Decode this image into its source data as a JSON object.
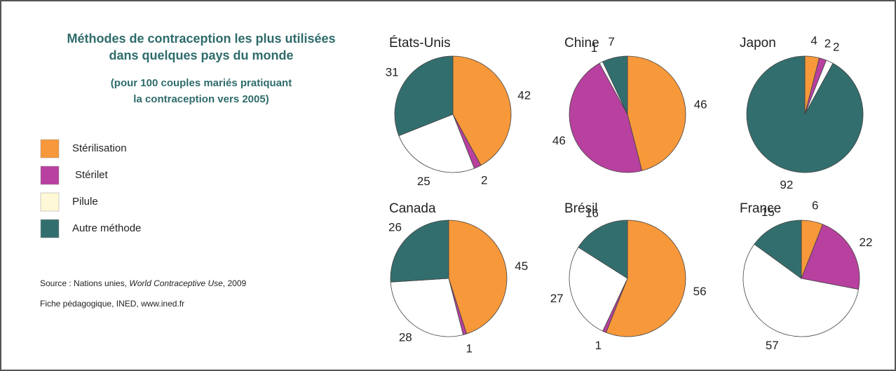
{
  "title": [
    "Méthodes de contraception  les plus utilisées",
    "dans quelques pays du monde"
  ],
  "subtitle": [
    "(pour 100 couples mariés pratiquant",
    "la contraception vers 2005)"
  ],
  "source": {
    "prefix": "Source : Nations unies, ",
    "work": "World Contraceptive Use",
    "suffix": ", 2009"
  },
  "credit": "Fiche pédagogique, INED, www.ined.fr",
  "chart_data": [
    {
      "type": "pie",
      "title": "États-Unis",
      "categories": [
        "Stérilisation",
        "Stérilet",
        "Pilule",
        "Autre méthode"
      ],
      "values": [
        42,
        2,
        25,
        31
      ],
      "colors": [
        "#f7983a",
        "#b8409f",
        "#ffffff",
        "#336e6e"
      ]
    },
    {
      "type": "pie",
      "title": "Chine",
      "categories": [
        "Stérilisation",
        "Stérilet",
        "Pilule",
        "Autre méthode"
      ],
      "values": [
        46,
        46,
        1,
        7
      ],
      "colors": [
        "#f7983a",
        "#b8409f",
        "#ffffff",
        "#336e6e"
      ]
    },
    {
      "type": "pie",
      "title": "Japon",
      "categories": [
        "Stérilisation",
        "Stérilet",
        "Pilule",
        "Autre méthode"
      ],
      "values": [
        4,
        2,
        2,
        92
      ],
      "colors": [
        "#f7983a",
        "#b8409f",
        "#ffffff",
        "#336e6e"
      ]
    },
    {
      "type": "pie",
      "title": "Canada",
      "categories": [
        "Stérilisation",
        "Stérilet",
        "Pilule",
        "Autre méthode"
      ],
      "values": [
        45,
        1,
        28,
        26
      ],
      "colors": [
        "#f7983a",
        "#b8409f",
        "#ffffff",
        "#336e6e"
      ]
    },
    {
      "type": "pie",
      "title": "Brésil",
      "categories": [
        "Stérilisation",
        "Stérilet",
        "Pilule",
        "Autre méthode"
      ],
      "values": [
        56,
        1,
        27,
        16
      ],
      "colors": [
        "#f7983a",
        "#b8409f",
        "#ffffff",
        "#336e6e"
      ]
    },
    {
      "type": "pie",
      "title": "France",
      "categories": [
        "Stérilisation",
        "Stérilet",
        "Pilule",
        "Autre méthode"
      ],
      "values": [
        6,
        22,
        57,
        15
      ],
      "colors": [
        "#f7983a",
        "#b8409f",
        "#ffffff",
        "#336e6e"
      ]
    }
  ]
}
